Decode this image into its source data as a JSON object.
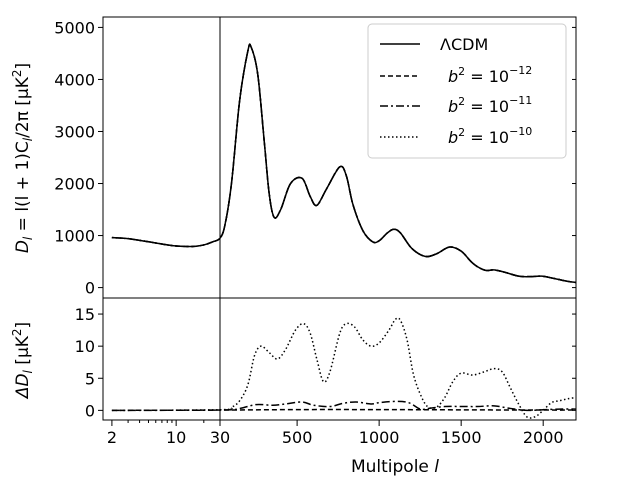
{
  "chart_data": [
    {
      "type": "line",
      "panel": "top",
      "ylabel": "D_l = l(l+1)C_l/2π [μK²]",
      "ylim": [
        -200,
        5200
      ],
      "yticks": [
        0,
        1000,
        2000,
        3000,
        4000,
        5000
      ],
      "ytick_labels": [
        "0",
        "1000",
        "2000",
        "3000",
        "4000",
        "5000"
      ],
      "legend_position": "top-right",
      "legend": [
        {
          "label": "ΛCDM",
          "style": "solid"
        },
        {
          "label": "b² = 10⁻¹²",
          "style": "dashed"
        },
        {
          "label": "b² = 10⁻¹¹",
          "style": "dashdot"
        },
        {
          "label": "b² = 10⁻¹⁰",
          "style": "dotted"
        }
      ],
      "series": [
        {
          "name": "ΛCDM",
          "style": "solid",
          "x": [
            2,
            3,
            5,
            8,
            10,
            15,
            20,
            25,
            30,
            60,
            100,
            150,
            200,
            220,
            260,
            300,
            330,
            360,
            400,
            460,
            530,
            580,
            620,
            680,
            760,
            800,
            840,
            900,
            960,
            1000,
            1050,
            1090,
            1130,
            1200,
            1280,
            1350,
            1430,
            1500,
            1560,
            1600,
            1650,
            1700,
            1760,
            1850,
            1920,
            1990,
            2060,
            2150,
            2200
          ],
          "y": [
            960,
            940,
            880,
            820,
            800,
            790,
            820,
            880,
            950,
            1200,
            2000,
            3600,
            4550,
            4620,
            4100,
            2800,
            1800,
            1350,
            1500,
            2000,
            2100,
            1750,
            1580,
            1900,
            2320,
            2150,
            1600,
            1100,
            880,
            900,
            1050,
            1120,
            1050,
            750,
            600,
            650,
            780,
            700,
            500,
            400,
            330,
            340,
            300,
            220,
            210,
            220,
            180,
            120,
            100
          ]
        },
        {
          "name": "b² = 10⁻¹²",
          "style": "dashed",
          "x": [
            2,
            3,
            5,
            8,
            10,
            15,
            20,
            25,
            30,
            60,
            100,
            150,
            200,
            220,
            260,
            300,
            330,
            360,
            400,
            460,
            530,
            580,
            620,
            680,
            760,
            800,
            840,
            900,
            960,
            1000,
            1050,
            1090,
            1130,
            1200,
            1280,
            1350,
            1430,
            1500,
            1560,
            1600,
            1650,
            1700,
            1760,
            1850,
            1920,
            1990,
            2060,
            2150,
            2200
          ],
          "y": [
            960,
            940,
            880,
            820,
            800,
            790,
            820,
            880,
            950,
            1200,
            2000,
            3600,
            4550,
            4620,
            4100,
            2800,
            1800,
            1350,
            1500,
            2000,
            2100,
            1750,
            1580,
            1900,
            2320,
            2150,
            1600,
            1100,
            880,
            900,
            1050,
            1120,
            1050,
            750,
            600,
            650,
            780,
            700,
            500,
            400,
            330,
            340,
            300,
            220,
            210,
            220,
            180,
            120,
            100
          ]
        },
        {
          "name": "b² = 10⁻¹¹",
          "style": "dashdot",
          "x": [
            2,
            3,
            5,
            8,
            10,
            15,
            20,
            25,
            30,
            60,
            100,
            150,
            200,
            220,
            260,
            300,
            330,
            360,
            400,
            460,
            530,
            580,
            620,
            680,
            760,
            800,
            840,
            900,
            960,
            1000,
            1050,
            1090,
            1130,
            1200,
            1280,
            1350,
            1430,
            1500,
            1560,
            1600,
            1650,
            1700,
            1760,
            1850,
            1920,
            1990,
            2060,
            2150,
            2200
          ],
          "y": [
            960,
            940,
            880,
            820,
            800,
            790,
            820,
            880,
            950,
            1200,
            2000,
            3600,
            4550,
            4620,
            4100,
            2800,
            1800,
            1350,
            1500,
            2000,
            2100,
            1750,
            1580,
            1900,
            2320,
            2150,
            1600,
            1100,
            880,
            900,
            1050,
            1120,
            1050,
            750,
            600,
            650,
            780,
            700,
            500,
            400,
            330,
            340,
            300,
            220,
            210,
            220,
            180,
            120,
            100
          ]
        },
        {
          "name": "b² = 10⁻¹⁰",
          "style": "dotted",
          "x": [
            2,
            3,
            5,
            8,
            10,
            15,
            20,
            25,
            30,
            60,
            100,
            150,
            200,
            220,
            260,
            300,
            330,
            360,
            400,
            460,
            530,
            580,
            620,
            680,
            760,
            800,
            840,
            900,
            960,
            1000,
            1050,
            1090,
            1130,
            1200,
            1280,
            1350,
            1430,
            1500,
            1560,
            1600,
            1650,
            1700,
            1760,
            1850,
            1920,
            1990,
            2060,
            2150,
            2200
          ],
          "y": [
            960,
            940,
            880,
            820,
            800,
            790,
            820,
            880,
            950,
            1200,
            2000,
            3600,
            4550,
            4620,
            4100,
            2800,
            1800,
            1350,
            1500,
            2000,
            2100,
            1750,
            1580,
            1900,
            2320,
            2150,
            1600,
            1100,
            880,
            900,
            1050,
            1120,
            1050,
            750,
            600,
            650,
            780,
            700,
            500,
            400,
            330,
            340,
            300,
            220,
            210,
            220,
            180,
            120,
            100
          ]
        }
      ]
    },
    {
      "type": "line",
      "panel": "bottom",
      "ylabel": "ΔD_l [μK²]",
      "xlabel": "Multipole l",
      "ylim": [
        -1.5,
        17.5
      ],
      "yticks": [
        0,
        5,
        10,
        15
      ],
      "ytick_labels": [
        "0",
        "5",
        "10",
        "15"
      ],
      "series": [
        {
          "name": "b² = 10⁻¹²",
          "style": "dashed",
          "x": [
            2,
            30,
            500,
            1000,
            1500,
            2000,
            2200
          ],
          "y": [
            0.0,
            0.05,
            0.12,
            0.12,
            0.08,
            0.05,
            0.05
          ]
        },
        {
          "name": "b² = 10⁻¹¹",
          "style": "dashdot",
          "x": [
            2,
            30,
            150,
            250,
            350,
            430,
            530,
            600,
            700,
            780,
            860,
            950,
            1000,
            1100,
            1180,
            1250,
            1300,
            1400,
            1500,
            1600,
            1700,
            1800,
            1900,
            2000,
            2100,
            2200
          ],
          "y": [
            0.0,
            0.05,
            0.3,
            0.9,
            0.8,
            1.0,
            1.3,
            0.8,
            0.6,
            1.1,
            1.3,
            1.0,
            1.2,
            1.4,
            1.2,
            0.2,
            0.3,
            0.6,
            0.6,
            0.6,
            0.7,
            0.3,
            0.0,
            0.1,
            0.2,
            0.2
          ]
        },
        {
          "name": "b² = 10⁻¹⁰",
          "style": "dotted",
          "x": [
            2,
            30,
            100,
            150,
            200,
            240,
            280,
            330,
            380,
            430,
            490,
            540,
            580,
            620,
            660,
            700,
            760,
            800,
            850,
            900,
            950,
            1000,
            1060,
            1100,
            1130,
            1170,
            1210,
            1260,
            1300,
            1350,
            1400,
            1450,
            1500,
            1570,
            1640,
            1700,
            1750,
            1800,
            1850,
            1900,
            1950,
            2000,
            2050,
            2100,
            2150,
            2200
          ],
          "y": [
            0.0,
            0.1,
            0.5,
            1.5,
            4.0,
            8.5,
            10.0,
            9.0,
            8.0,
            9.5,
            12.5,
            13.5,
            12.0,
            8.0,
            4.5,
            6.0,
            12.0,
            13.5,
            13.0,
            11.0,
            10.0,
            10.5,
            12.5,
            14.2,
            14.0,
            11.0,
            5.5,
            2.0,
            0.5,
            0.5,
            2.0,
            4.5,
            5.8,
            5.5,
            6.0,
            6.5,
            6.0,
            3.5,
            1.0,
            -1.0,
            -1.0,
            0.0,
            1.2,
            1.5,
            1.8,
            2.0
          ]
        }
      ]
    }
  ],
  "shared_x": {
    "xlabel": "Multipole l",
    "scale": "log below l=30, linear above l=30",
    "split_at": 30,
    "xlim": [
      1.6,
      2200
    ],
    "xticks": [
      2,
      10,
      30,
      500,
      1000,
      1500,
      2000
    ],
    "xtick_labels": [
      "2",
      "10",
      "30",
      "500",
      "1000",
      "1500",
      "2000"
    ]
  },
  "labels": {
    "top_ylabel_main": "D",
    "top_ylabel_sub": "l",
    "top_ylabel_rest": " = l(l + 1)C",
    "top_ylabel_sub2": "l",
    "top_ylabel_rest2": "/2π [μK",
    "top_ylabel_sup": "2",
    "top_ylabel_end": "]",
    "bottom_ylabel_main": "ΔD",
    "bottom_ylabel_sub": "l",
    "bottom_ylabel_rest": "  [μK",
    "bottom_ylabel_sup": "2",
    "bottom_ylabel_end": "]",
    "xlabel_main": "Multipole ",
    "xlabel_var": "l",
    "legend_lcdm": "ΛCDM",
    "legend_b_prefix": "b",
    "legend_b_sup": "2",
    "legend_eq": " = 10",
    "legend_exp_12": "−12",
    "legend_exp_11": "−11",
    "legend_exp_10": "−10"
  }
}
